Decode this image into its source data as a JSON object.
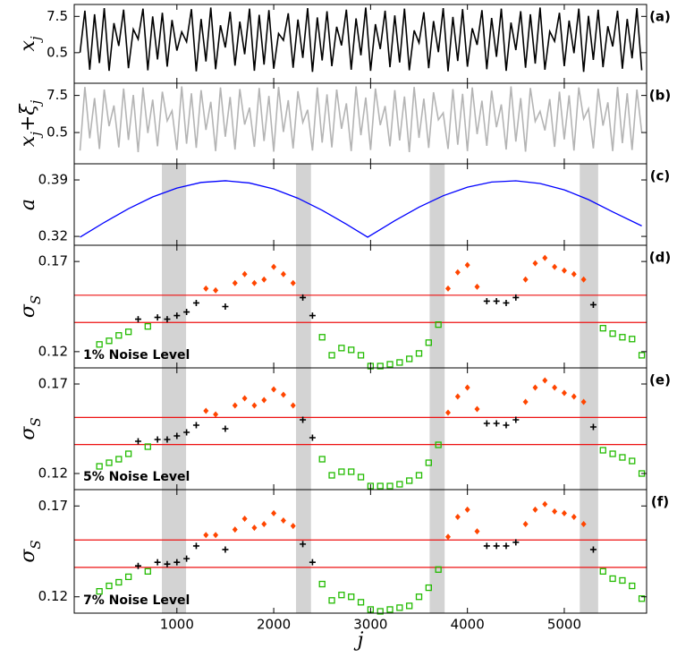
{
  "chart_data": [
    {
      "type": "line",
      "panel_label": "(a)",
      "ylabel": [
        {
          "text": "x"
        },
        {
          "text": "j",
          "sub": true
        }
      ],
      "color": "#000000",
      "xlim": [
        -60,
        5850
      ],
      "ylim": [
        -5.4,
        9.8
      ],
      "yticks": [
        7.5,
        0.5
      ],
      "x": [
        0,
        50,
        100,
        150,
        200,
        250,
        300,
        350,
        400,
        450,
        500,
        550,
        600,
        650,
        700,
        750,
        800,
        850,
        900,
        950,
        1000,
        1050,
        1100,
        1150,
        1200,
        1250,
        1300,
        1350,
        1400,
        1450,
        1500,
        1550,
        1600,
        1650,
        1700,
        1750,
        1800,
        1850,
        1900,
        1950,
        2000,
        2050,
        2100,
        2150,
        2200,
        2250,
        2300,
        2350,
        2400,
        2450,
        2500,
        2550,
        2600,
        2650,
        2700,
        2750,
        2800,
        2850,
        2900,
        2950,
        3000,
        3050,
        3100,
        3150,
        3200,
        3250,
        3300,
        3350,
        3400,
        3450,
        3500,
        3550,
        3600,
        3650,
        3700,
        3750,
        3800,
        3850,
        3900,
        3950,
        4000,
        4050,
        4100,
        4150,
        4200,
        4250,
        4300,
        4350,
        4400,
        4450,
        4500,
        4550,
        4600,
        4650,
        4700,
        4750,
        4800,
        4850,
        4900,
        4950,
        5000,
        5050,
        5100,
        5150,
        5200,
        5250,
        5300,
        5350,
        5400,
        5450,
        5500,
        5550,
        5600,
        5650,
        5700,
        5750,
        5800
      ],
      "values": [
        0.5,
        8.6,
        -2.8,
        7.9,
        -1.5,
        9.1,
        -3.0,
        6.2,
        1.8,
        8.8,
        -2.5,
        5.0,
        3.1,
        9.0,
        -2.9,
        7.5,
        -0.8,
        8.2,
        -2.2,
        6.8,
        0.9,
        4.5,
        2.6,
        8.9,
        -3.1,
        7.0,
        -1.2,
        9.2,
        -2.7,
        5.8,
        1.5,
        8.4,
        -2.0,
        6.5,
        0.2,
        9.0,
        -3.0,
        7.8,
        -1.8,
        8.7,
        -2.6,
        4.2,
        2.9,
        8.1,
        -2.4,
        6.9,
        -0.5,
        9.1,
        -3.2,
        7.3,
        -1.0,
        8.5,
        -2.1,
        5.5,
        1.9,
        8.8,
        -2.8,
        7.1,
        0.0,
        9.2,
        -3.0,
        6.0,
        1.2,
        8.6,
        -2.3,
        7.7,
        -1.4,
        9.0,
        -2.9,
        4.8,
        2.4,
        8.3,
        -2.5,
        6.6,
        0.6,
        9.1,
        -3.1,
        7.4,
        -1.1,
        8.9,
        -2.2,
        5.2,
        2.0,
        8.7,
        -2.7,
        7.2,
        -0.3,
        9.0,
        -3.0,
        6.3,
        1.0,
        8.5,
        -2.4,
        7.9,
        -1.6,
        9.2,
        -2.8,
        4.6,
        2.7,
        8.2,
        -2.1,
        6.7,
        0.4,
        9.0,
        -3.2,
        7.6,
        -0.9,
        8.8,
        -2.3,
        5.6,
        1.7,
        8.6,
        -2.6,
        7.0,
        -0.6,
        9.1,
        -2.9
      ]
    },
    {
      "type": "line",
      "panel_label": "(b)",
      "ylabel": [
        {
          "text": "x"
        },
        {
          "text": "j",
          "sub": true
        },
        {
          "text": "+ξ"
        },
        {
          "text": "j",
          "sub": true
        }
      ],
      "color": "#b4b4b4",
      "xlim": [
        -60,
        5850
      ],
      "ylim": [
        -5.4,
        9.8
      ],
      "yticks": [
        7.5,
        0.5
      ],
      "x": [
        0,
        50,
        100,
        150,
        200,
        250,
        300,
        350,
        400,
        450,
        500,
        550,
        600,
        650,
        700,
        750,
        800,
        850,
        900,
        950,
        1000,
        1050,
        1100,
        1150,
        1200,
        1250,
        1300,
        1350,
        1400,
        1450,
        1500,
        1550,
        1600,
        1650,
        1700,
        1750,
        1800,
        1850,
        1900,
        1950,
        2000,
        2050,
        2100,
        2150,
        2200,
        2250,
        2300,
        2350,
        2400,
        2450,
        2500,
        2550,
        2600,
        2650,
        2700,
        2750,
        2800,
        2850,
        2900,
        2950,
        3000,
        3050,
        3100,
        3150,
        3200,
        3250,
        3300,
        3350,
        3400,
        3450,
        3500,
        3550,
        3600,
        3650,
        3700,
        3750,
        3800,
        3850,
        3900,
        3950,
        4000,
        4050,
        4100,
        4150,
        4200,
        4250,
        4300,
        4350,
        4400,
        4450,
        4500,
        4550,
        4600,
        4650,
        4700,
        4750,
        4800,
        4850,
        4900,
        4950,
        5000,
        5050,
        5100,
        5150,
        5200,
        5250,
        5300,
        5350,
        5400,
        5450,
        5500,
        5550,
        5600,
        5650,
        5700,
        5750,
        5800
      ],
      "values": [
        -2.9,
        9.1,
        -0.6,
        7.0,
        -2.6,
        8.6,
        1.7,
        5.6,
        -2.3,
        8.8,
        -0.9,
        7.6,
        -3.2,
        9.0,
        0.4,
        6.7,
        -2.1,
        8.2,
        2.7,
        4.6,
        -2.8,
        9.2,
        -1.6,
        7.9,
        -2.4,
        8.5,
        1.0,
        6.3,
        -3.0,
        9.0,
        -0.3,
        7.2,
        -2.7,
        8.7,
        2.0,
        5.2,
        -2.2,
        8.9,
        -1.1,
        7.4,
        -3.1,
        9.1,
        0.6,
        6.6,
        -2.5,
        8.3,
        2.4,
        4.8,
        -2.9,
        9.0,
        -1.4,
        7.7,
        -2.3,
        8.6,
        1.2,
        6.0,
        -3.0,
        9.2,
        0.0,
        7.1,
        -2.8,
        8.8,
        1.9,
        5.5,
        -2.1,
        8.5,
        -1.0,
        7.3,
        -3.2,
        9.1,
        -0.5,
        6.9,
        -2.4,
        8.1,
        2.9,
        4.2,
        -2.6,
        8.7,
        -1.8,
        7.8,
        -3.0,
        9.0,
        0.2,
        6.5,
        -2.0,
        8.4,
        1.5,
        5.8,
        -2.7,
        9.2,
        -1.2,
        7.0,
        -3.1,
        8.9,
        2.6,
        4.5,
        0.9,
        6.8,
        -2.2,
        8.2,
        -0.8,
        7.5,
        -2.9,
        9.0,
        3.1,
        5.0,
        -2.5,
        8.8,
        1.8,
        6.2,
        -3.0,
        9.1,
        -1.5,
        7.9,
        -2.8,
        8.6,
        0.5
      ]
    },
    {
      "type": "line",
      "panel_label": "(c)",
      "ylabel": [
        {
          "text": "a"
        }
      ],
      "color": "#0000ff",
      "xlim": [
        -60,
        5850
      ],
      "ylim": [
        0.309,
        0.41
      ],
      "yticks": [
        0.39,
        0.32
      ],
      "shaded": [
        [
          845,
          1095
        ],
        [
          2230,
          2385
        ],
        [
          3610,
          3765
        ],
        [
          5160,
          5350
        ]
      ],
      "x": [
        0,
        250,
        500,
        750,
        1000,
        1250,
        1500,
        1750,
        2000,
        2250,
        2500,
        2750,
        2970,
        3250,
        3500,
        3750,
        4000,
        4250,
        4500,
        4750,
        5000,
        5250,
        5500,
        5800
      ],
      "values": [
        0.319,
        0.3373,
        0.3543,
        0.3689,
        0.3799,
        0.3869,
        0.389,
        0.3862,
        0.3788,
        0.3673,
        0.3524,
        0.3351,
        0.319,
        0.3394,
        0.3562,
        0.3704,
        0.381,
        0.3874,
        0.3889,
        0.3856,
        0.3777,
        0.3656,
        0.3504,
        0.333
      ]
    },
    {
      "type": "scatter",
      "panel_label": "(d)",
      "ylabel": [
        {
          "text": "σ"
        },
        {
          "text": "S",
          "sub": true
        }
      ],
      "annotation": "1% Noise Level",
      "xlim": [
        -60,
        5850
      ],
      "ylim": [
        0.111,
        0.179
      ],
      "yticks": [
        0.17,
        0.12
      ],
      "shaded": [
        [
          845,
          1095
        ],
        [
          2230,
          2385
        ],
        [
          3610,
          3765
        ],
        [
          5160,
          5350
        ]
      ],
      "thresholds": [
        0.1362,
        0.1513
      ],
      "threshold_color": "#ee1111",
      "markers": [
        {
          "shape": "square",
          "color": "#22bb00"
        },
        {
          "shape": "plus",
          "color": "#000000"
        },
        {
          "shape": "diamond",
          "color": "#ff4500"
        }
      ],
      "x": [
        200,
        300,
        400,
        500,
        600,
        700,
        800,
        900,
        1000,
        1100,
        1200,
        1300,
        1400,
        1500,
        1600,
        1700,
        1800,
        1900,
        2000,
        2100,
        2200,
        2300,
        2400,
        2500,
        2600,
        2700,
        2800,
        2900,
        3000,
        3100,
        3200,
        3300,
        3400,
        3500,
        3600,
        3700,
        3800,
        3900,
        4000,
        4100,
        4200,
        4300,
        4400,
        4500,
        4600,
        4700,
        4800,
        4900,
        5000,
        5100,
        5200,
        5300,
        5400,
        5500,
        5600,
        5700,
        5800
      ],
      "values": [
        0.124,
        0.126,
        0.129,
        0.131,
        0.138,
        0.134,
        0.139,
        0.138,
        0.14,
        0.142,
        0.147,
        0.155,
        0.154,
        0.145,
        0.158,
        0.163,
        0.158,
        0.16,
        0.167,
        0.163,
        0.158,
        0.15,
        0.14,
        0.128,
        0.118,
        0.122,
        0.121,
        0.118,
        0.112,
        0.112,
        0.113,
        0.114,
        0.116,
        0.119,
        0.125,
        0.135,
        0.155,
        0.164,
        0.168,
        0.156,
        0.148,
        0.148,
        0.147,
        0.15,
        0.16,
        0.169,
        0.172,
        0.167,
        0.165,
        0.163,
        0.16,
        0.146,
        0.133,
        0.13,
        0.128,
        0.127,
        0.118
      ]
    },
    {
      "type": "scatter",
      "panel_label": "(e)",
      "ylabel": [
        {
          "text": "σ"
        },
        {
          "text": "S",
          "sub": true
        }
      ],
      "annotation": "5% Noise Level",
      "xlim": [
        -60,
        5850
      ],
      "ylim": [
        0.111,
        0.179
      ],
      "yticks": [
        0.17,
        0.12
      ],
      "shaded": [
        [
          845,
          1095
        ],
        [
          2230,
          2385
        ],
        [
          3610,
          3765
        ],
        [
          5160,
          5350
        ]
      ],
      "thresholds": [
        0.1362,
        0.1513
      ],
      "threshold_color": "#ee1111",
      "markers": [
        {
          "shape": "square",
          "color": "#22bb00"
        },
        {
          "shape": "plus",
          "color": "#000000"
        },
        {
          "shape": "diamond",
          "color": "#ff4500"
        }
      ],
      "x": [
        200,
        300,
        400,
        500,
        600,
        700,
        800,
        900,
        1000,
        1100,
        1200,
        1300,
        1400,
        1500,
        1600,
        1700,
        1800,
        1900,
        2000,
        2100,
        2200,
        2300,
        2400,
        2500,
        2600,
        2700,
        2800,
        2900,
        3000,
        3100,
        3200,
        3300,
        3400,
        3500,
        3600,
        3700,
        3800,
        3900,
        4000,
        4100,
        4200,
        4300,
        4400,
        4500,
        4600,
        4700,
        4800,
        4900,
        5000,
        5100,
        5200,
        5300,
        5400,
        5500,
        5600,
        5700,
        5800
      ],
      "values": [
        0.124,
        0.126,
        0.128,
        0.131,
        0.138,
        0.135,
        0.139,
        0.139,
        0.141,
        0.143,
        0.147,
        0.155,
        0.153,
        0.145,
        0.158,
        0.162,
        0.158,
        0.161,
        0.167,
        0.164,
        0.158,
        0.15,
        0.14,
        0.128,
        0.119,
        0.121,
        0.121,
        0.118,
        0.113,
        0.113,
        0.113,
        0.114,
        0.116,
        0.119,
        0.126,
        0.136,
        0.154,
        0.163,
        0.168,
        0.156,
        0.148,
        0.148,
        0.147,
        0.15,
        0.16,
        0.168,
        0.172,
        0.168,
        0.165,
        0.163,
        0.16,
        0.146,
        0.133,
        0.131,
        0.129,
        0.127,
        0.12
      ]
    },
    {
      "type": "scatter",
      "panel_label": "(f)",
      "ylabel": [
        {
          "text": "σ"
        },
        {
          "text": "S",
          "sub": true
        }
      ],
      "annotation": "7% Noise Level",
      "xlim": [
        -60,
        5850
      ],
      "ylim": [
        0.111,
        0.179
      ],
      "yticks": [
        0.17,
        0.12
      ],
      "xticks": [
        1000,
        2000,
        3000,
        4000,
        5000
      ],
      "xlabel": "j",
      "shaded": [
        [
          845,
          1095
        ],
        [
          2230,
          2385
        ],
        [
          3610,
          3765
        ],
        [
          5160,
          5350
        ]
      ],
      "thresholds": [
        0.1362,
        0.1513
      ],
      "threshold_color": "#ee1111",
      "markers": [
        {
          "shape": "square",
          "color": "#22bb00"
        },
        {
          "shape": "plus",
          "color": "#000000"
        },
        {
          "shape": "diamond",
          "color": "#ff4500"
        }
      ],
      "x": [
        200,
        300,
        400,
        500,
        600,
        700,
        800,
        900,
        1000,
        1100,
        1200,
        1300,
        1400,
        1500,
        1600,
        1700,
        1800,
        1900,
        2000,
        2100,
        2200,
        2300,
        2400,
        2500,
        2600,
        2700,
        2800,
        2900,
        3000,
        3100,
        3200,
        3300,
        3400,
        3500,
        3600,
        3700,
        3800,
        3900,
        4000,
        4100,
        4200,
        4300,
        4400,
        4500,
        4600,
        4700,
        4800,
        4900,
        5000,
        5100,
        5200,
        5300,
        5400,
        5500,
        5600,
        5700,
        5800
      ],
      "values": [
        0.123,
        0.126,
        0.128,
        0.131,
        0.137,
        0.134,
        0.139,
        0.138,
        0.139,
        0.141,
        0.148,
        0.154,
        0.154,
        0.146,
        0.157,
        0.163,
        0.158,
        0.16,
        0.166,
        0.162,
        0.159,
        0.149,
        0.139,
        0.127,
        0.118,
        0.121,
        0.12,
        0.117,
        0.113,
        0.112,
        0.113,
        0.114,
        0.115,
        0.12,
        0.125,
        0.135,
        0.153,
        0.164,
        0.168,
        0.156,
        0.148,
        0.148,
        0.148,
        0.15,
        0.16,
        0.168,
        0.171,
        0.167,
        0.166,
        0.164,
        0.16,
        0.146,
        0.134,
        0.13,
        0.129,
        0.126,
        0.119
      ]
    }
  ]
}
